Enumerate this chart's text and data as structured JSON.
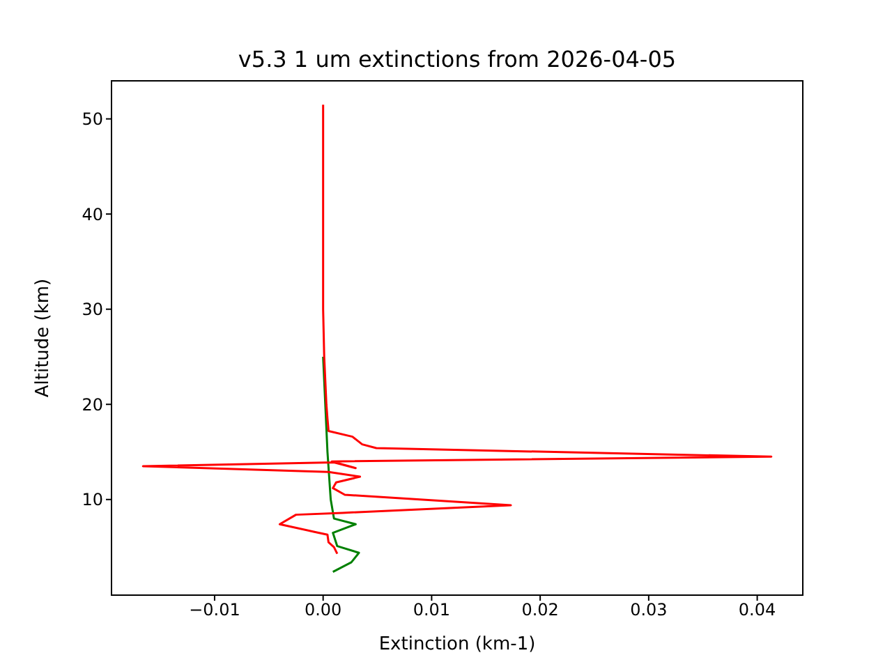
{
  "chart_data": {
    "type": "line",
    "title": "v5.3 1 um extinctions from 2026-04-05",
    "xlabel": "Extinction (km-1)",
    "ylabel": "Altitude (km)",
    "xlim": [
      -0.0195,
      0.0442
    ],
    "ylim": [
      -0.05,
      54
    ],
    "xticks": [
      {
        "value": -0.01,
        "label": "−0.01"
      },
      {
        "value": 0,
        "label": "0.00"
      },
      {
        "value": 0.01,
        "label": "0.01"
      },
      {
        "value": 0.02,
        "label": "0.02"
      },
      {
        "value": 0.03,
        "label": "0.03"
      },
      {
        "value": 0.04,
        "label": "0.04"
      }
    ],
    "yticks": [
      10,
      20,
      30,
      40,
      50
    ],
    "grid": false,
    "legend": false,
    "marker": "none",
    "line_style": "solid",
    "series": [
      {
        "color": "#008000",
        "x": [
          0.0009,
          0.0026,
          0.0033,
          0.0013,
          0.0009,
          0.003,
          0.001,
          0.0007,
          0.0004,
          0.0002,
          0.0
        ],
        "values": [
          2.4,
          3.4,
          4.4,
          5.1,
          6.5,
          7.4,
          8.0,
          10,
          15,
          20,
          25
        ]
      },
      {
        "color": "#ff0000",
        "x": [
          0.0013,
          0.001,
          0.0005,
          0.0004,
          -0.0008,
          -0.004,
          -0.0025,
          0.0018,
          0.0173,
          0.002,
          0.0009,
          0.0012,
          0.0034,
          0.0005,
          -0.0166,
          0.001,
          0.003,
          0.0008,
          0.0413,
          0.0049,
          0.0036,
          0.0027,
          0.0005,
          0.0004,
          0.0003,
          0.0001,
          0.0,
          0.0,
          0.0
        ],
        "values": [
          4.3,
          5.0,
          5.5,
          6.3,
          6.6,
          7.4,
          8.4,
          8.6,
          9.4,
          10.5,
          11.2,
          11.8,
          12.4,
          12.9,
          13.5,
          13.9,
          13.3,
          14.0,
          14.5,
          15.4,
          15.8,
          16.6,
          17.2,
          18.5,
          20,
          25,
          30,
          40,
          51.5
        ]
      }
    ]
  }
}
